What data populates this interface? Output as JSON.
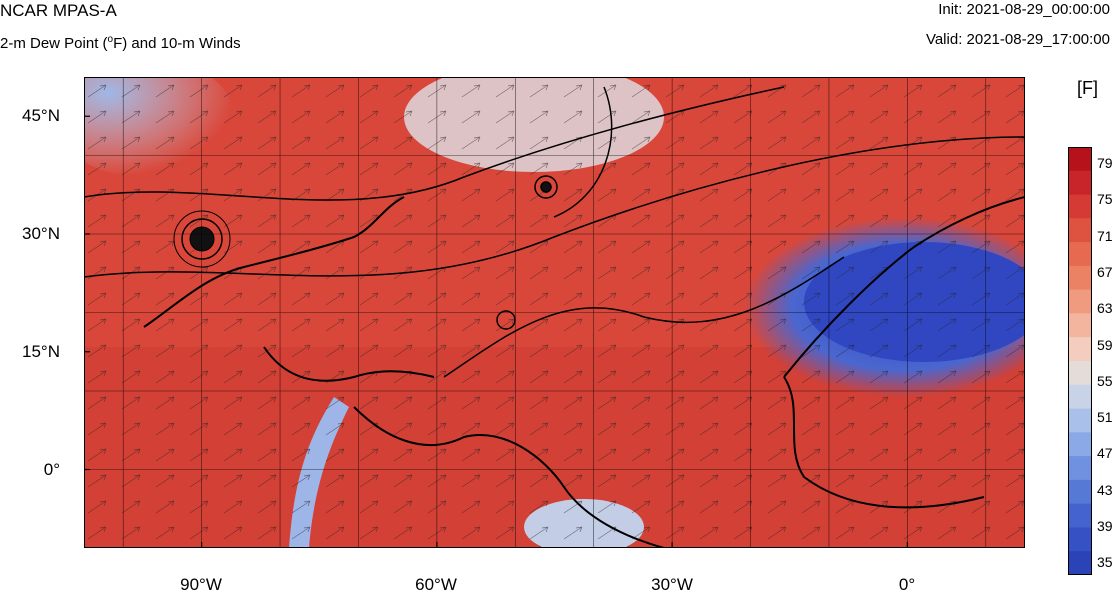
{
  "header": {
    "model": "NCAR MPAS-A",
    "field_title": "2-m Dew Point (",
    "field_sup": "o",
    "field_title_rest": "F) and 10-m Winds",
    "init": "Init: 2021-08-29_00:00:00",
    "valid": "Valid: 2021-08-29_17:00:00"
  },
  "map": {
    "lon_range": [
      -105,
      15
    ],
    "lat_range": [
      -10,
      50
    ],
    "y_ticks": [
      {
        "lat": 45,
        "label": "45°N"
      },
      {
        "lat": 30,
        "label": "30°N"
      },
      {
        "lat": 15,
        "label": "15°N"
      },
      {
        "lat": 0,
        "label": "0°"
      }
    ],
    "x_ticks": [
      {
        "lon": -90,
        "label": "90°W"
      },
      {
        "lon": -60,
        "label": "60°W"
      },
      {
        "lon": -30,
        "label": "30°W"
      },
      {
        "lon": 0,
        "label": "0°"
      }
    ],
    "grid_spacing_deg": 10,
    "colors": {
      "warm": "#d8493a",
      "deep_warm": "#b9242a",
      "cool": "#3a55c5",
      "neutral": "#e6e6e6"
    },
    "hurricane_center": {
      "lon": -90,
      "lat": 29
    },
    "cyclone_center": {
      "lon": -46,
      "lat": 36
    }
  },
  "colorbar": {
    "unit": "[F]",
    "labels": [
      "79",
      "75",
      "71",
      "67",
      "63",
      "59",
      "55",
      "51",
      "47",
      "43",
      "39",
      "35"
    ],
    "colors": [
      "#b5121b",
      "#c8252a",
      "#d53b34",
      "#de5340",
      "#e66a50",
      "#ec8264",
      "#f09b7f",
      "#f4b59e",
      "#f5cdbf",
      "#e3dcd8",
      "#c9d3e7",
      "#a9c1ea",
      "#8aa9e6",
      "#6f91df",
      "#5779d6",
      "#4463cd",
      "#3551c4",
      "#2a44b8"
    ]
  }
}
